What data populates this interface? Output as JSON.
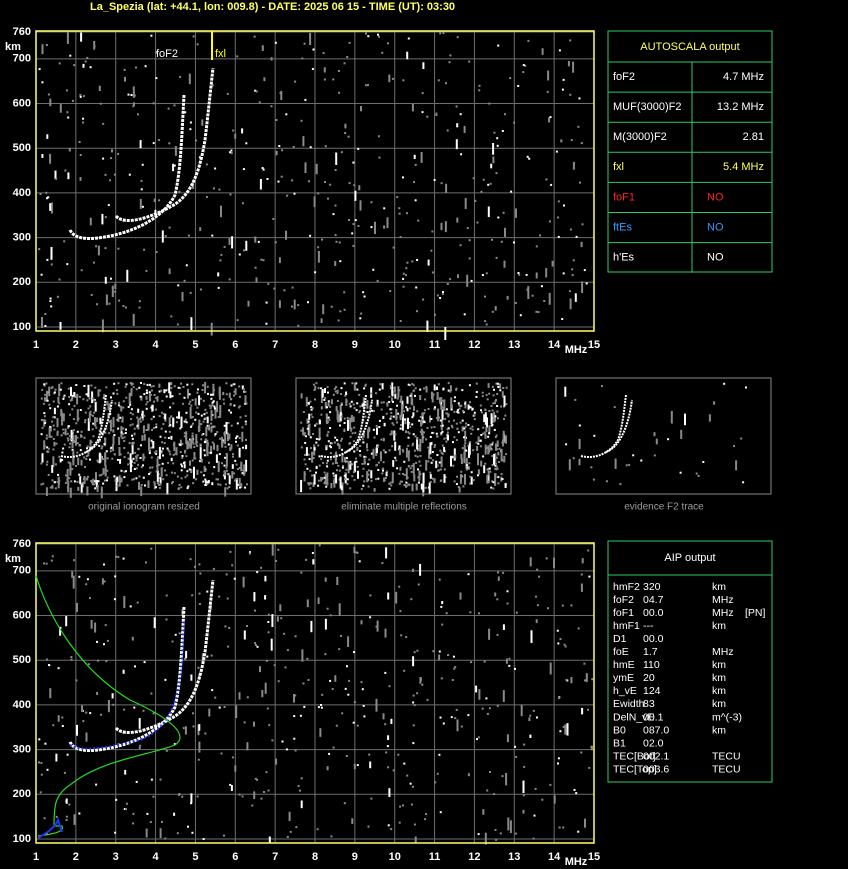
{
  "header": {
    "title": "La_Spezia (lat: +44.1, lon: 009.8) - DATE: 2025 06 15 - TIME (UT): 03:30"
  },
  "plots": [
    {
      "x_unit": "MHz",
      "y_unit": "km",
      "xticks": [
        1,
        2,
        3,
        4,
        5,
        6,
        7,
        8,
        9,
        10,
        11,
        12,
        13,
        14,
        15
      ],
      "yticks": [
        100,
        200,
        300,
        400,
        500,
        600,
        700,
        760
      ],
      "markers": [
        {
          "label": "foF2",
          "color": "#ffffff"
        },
        {
          "label": "fxl",
          "color": "#ffff00"
        }
      ]
    },
    {
      "x_unit": "MHz",
      "y_unit": "km",
      "xticks": [
        1,
        2,
        3,
        4,
        5,
        6,
        7,
        8,
        9,
        10,
        11,
        12,
        13,
        14,
        15
      ],
      "yticks": [
        100,
        200,
        300,
        400,
        500,
        600,
        700,
        760
      ]
    }
  ],
  "autoscala": {
    "title": "AUTOSCALA output",
    "rows": [
      {
        "name": "foF2",
        "value": "4.7 MHz",
        "color": "#ffffff"
      },
      {
        "name": "MUF(3000)F2",
        "value": "13.2 MHz",
        "color": "#ffffff"
      },
      {
        "name": "M(3000)F2",
        "value": "2.81",
        "color": "#ffffff"
      },
      {
        "name": "fxl",
        "value": "5.4 MHz",
        "color": "#ffff66"
      },
      {
        "name": "foF1",
        "value": "NO",
        "color": "#ff2020"
      },
      {
        "name": "ftEs",
        "value": "NO",
        "color": "#3399ff"
      },
      {
        "name": "h'Es",
        "value": "NO",
        "color": "#ffffff"
      }
    ]
  },
  "thumbnails": [
    "original ionogram resized",
    "eliminate multiple reflections",
    "evidence F2 trace"
  ],
  "aip": {
    "title": "AIP output",
    "rows": [
      [
        "hmF2",
        "320",
        "km"
      ],
      [
        "foF2",
        "04.7",
        "MHz"
      ],
      [
        "foF1",
        "00.0",
        "MHz",
        "[PN]"
      ],
      [
        "hmF1",
        "---",
        "km"
      ],
      [
        "D1",
        "00.0"
      ],
      [
        "foE",
        "1.7",
        "MHz"
      ],
      [
        "hmE",
        "110",
        "km"
      ],
      [
        "ymE",
        "20",
        "km"
      ],
      [
        "h_vE",
        "124",
        "km"
      ],
      [
        "Ewidth",
        "83",
        "km"
      ],
      [
        "DelN_vE",
        "00.1",
        "m^(-3)"
      ],
      [
        "B0",
        "087.0",
        "km"
      ],
      [
        "B1",
        "02.0"
      ],
      [
        "TEC[Bot]",
        "002.1",
        "TECU"
      ],
      [
        "TEC[Top]",
        "003.6",
        "TECU"
      ]
    ]
  }
}
